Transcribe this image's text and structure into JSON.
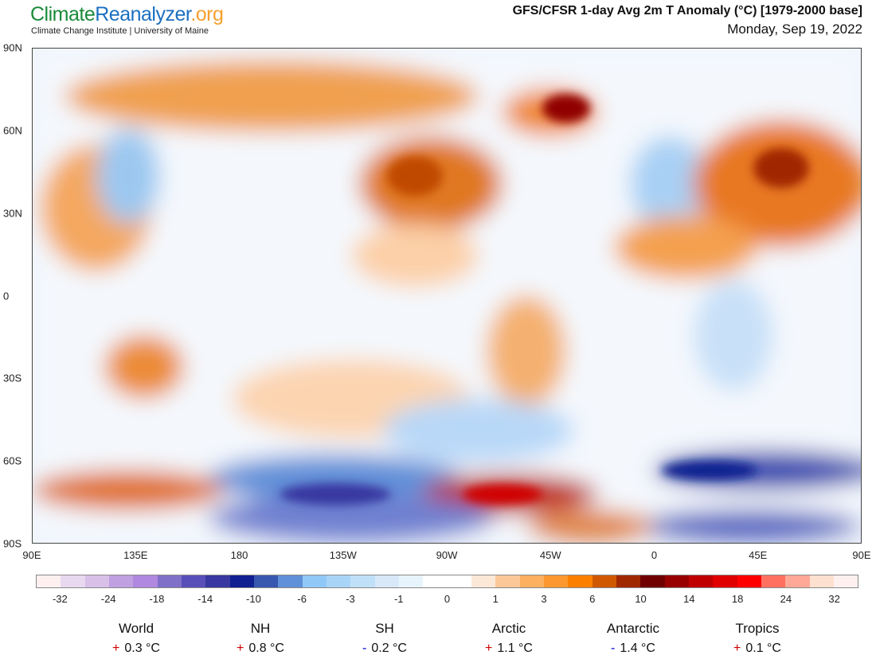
{
  "header": {
    "logo_climate": "Climate",
    "logo_reanalyzer": "Reanalyzer",
    "logo_org": ".org",
    "subtitle": "Climate Change Institute | University of Maine",
    "title": "GFS/CFSR 1-day Avg 2m T Anomaly (°C) [1979-2000 base]",
    "date": "Monday, Sep 19, 2022"
  },
  "map": {
    "lat_labels": [
      "90N",
      "60N",
      "30N",
      "0",
      "30S",
      "60S",
      "90S"
    ],
    "lon_labels": [
      "90E",
      "135E",
      "180",
      "135W",
      "90W",
      "45W",
      "0",
      "45E",
      "90E"
    ]
  },
  "colorbar": {
    "labels": [
      "-32",
      "-24",
      "-18",
      "-14",
      "-10",
      "-6",
      "-3",
      "-1",
      "0",
      "1",
      "3",
      "6",
      "10",
      "14",
      "18",
      "24",
      "32"
    ],
    "colors": [
      "#fff0f0",
      "#e8d8f0",
      "#d8c0e8",
      "#c0a0e0",
      "#b088e0",
      "#8070c8",
      "#5850b8",
      "#3838a0",
      "#102090",
      "#3858b0",
      "#6090d8",
      "#90c8f8",
      "#a8d4f8",
      "#c0e0f8",
      "#d8e8f8",
      "#e8f4fc",
      "#ffffff",
      "#ffffff",
      "#fde8d8",
      "#fdc898",
      "#fcb060",
      "#fc9830",
      "#fc8000",
      "#d05800",
      "#a02800",
      "#700000",
      "#980000",
      "#c00000",
      "#e00000",
      "#ff0000",
      "#ff7060",
      "#ffa898",
      "#fde0d0",
      "#fff0f0"
    ]
  },
  "stats": [
    {
      "name": "World",
      "sign": "+",
      "value": "0.3 °C"
    },
    {
      "name": "NH",
      "sign": "+",
      "value": "0.8 °C"
    },
    {
      "name": "SH",
      "sign": "-",
      "value": "0.2 °C"
    },
    {
      "name": "Arctic",
      "sign": "+",
      "value": "1.1 °C"
    },
    {
      "name": "Antarctic",
      "sign": "-",
      "value": "1.4 °C"
    },
    {
      "name": "Tropics",
      "sign": "+",
      "value": "0.1 °C"
    }
  ]
}
